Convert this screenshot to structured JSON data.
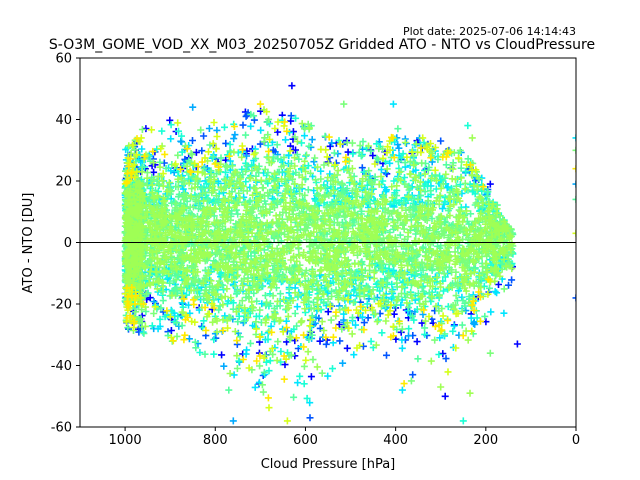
{
  "plot_date": "Plot date: 2025-07-06 14:14:43",
  "chart_data": {
    "type": "scatter",
    "title": "S-O3M_GOME_VOD_XX_M03_20250705Z Gridded ATO - NTO vs CloudPressure",
    "xlabel": "Cloud Pressure [hPa]",
    "ylabel": "ATO - NTO [DU]",
    "xlim": [
      1100,
      0
    ],
    "ylim": [
      -60,
      60
    ],
    "x_ticks": [
      1000,
      800,
      600,
      400,
      200,
      0
    ],
    "y_ticks": [
      60,
      40,
      20,
      0,
      -20,
      -40,
      -60
    ],
    "reference_line_y": 0,
    "marker": "+",
    "colors": [
      "#0000ff",
      "#0055ff",
      "#00aaff",
      "#00e5ff",
      "#1affd5",
      "#55ff9f",
      "#7bff7b",
      "#9fff55",
      "#d5ff1a",
      "#ffea00"
    ],
    "envelope": [
      {
        "x": 1000,
        "upper": 30,
        "lower": -28
      },
      {
        "x": 950,
        "upper": 40,
        "lower": -30
      },
      {
        "x": 900,
        "upper": 40,
        "lower": -32
      },
      {
        "x": 850,
        "upper": 38,
        "lower": -35
      },
      {
        "x": 800,
        "upper": 40,
        "lower": -40
      },
      {
        "x": 750,
        "upper": 42,
        "lower": -48
      },
      {
        "x": 700,
        "upper": 44,
        "lower": -55
      },
      {
        "x": 650,
        "upper": 42,
        "lower": -57
      },
      {
        "x": 600,
        "upper": 40,
        "lower": -57
      },
      {
        "x": 550,
        "upper": 35,
        "lower": -45
      },
      {
        "x": 500,
        "upper": 35,
        "lower": -38
      },
      {
        "x": 450,
        "upper": 32,
        "lower": -35
      },
      {
        "x": 400,
        "upper": 35,
        "lower": -45
      },
      {
        "x": 350,
        "upper": 35,
        "lower": -48
      },
      {
        "x": 300,
        "upper": 30,
        "lower": -50
      },
      {
        "x": 250,
        "upper": 30,
        "lower": -55
      },
      {
        "x": 200,
        "upper": 20,
        "lower": -30
      },
      {
        "x": 150,
        "upper": 5,
        "lower": -25
      }
    ],
    "outliers": [
      {
        "x": 630,
        "y": 51
      },
      {
        "x": 405,
        "y": 45
      },
      {
        "x": 515,
        "y": 45
      },
      {
        "x": 700,
        "y": 45
      },
      {
        "x": 850,
        "y": 44
      },
      {
        "x": 395,
        "y": 37
      },
      {
        "x": 340,
        "y": 34
      },
      {
        "x": 300,
        "y": 33
      },
      {
        "x": 240,
        "y": 38
      },
      {
        "x": 230,
        "y": 34
      },
      {
        "x": 190,
        "y": 19
      },
      {
        "x": 0,
        "y": 34
      },
      {
        "x": 0,
        "y": 30
      },
      {
        "x": 0,
        "y": 24
      },
      {
        "x": 0,
        "y": 19
      },
      {
        "x": 0,
        "y": 14
      },
      {
        "x": 0,
        "y": 3
      },
      {
        "x": 0,
        "y": -18
      },
      {
        "x": 250,
        "y": -58
      },
      {
        "x": 235,
        "y": -49
      },
      {
        "x": 130,
        "y": -33
      },
      {
        "x": 160,
        "y": -23
      },
      {
        "x": 190,
        "y": -36
      },
      {
        "x": 620,
        "y": -31
      },
      {
        "x": 760,
        "y": -58
      },
      {
        "x": 770,
        "y": -48
      },
      {
        "x": 640,
        "y": -58
      },
      {
        "x": 590,
        "y": -57
      },
      {
        "x": 540,
        "y": -41
      },
      {
        "x": 300,
        "y": -47
      },
      {
        "x": 290,
        "y": -50
      },
      {
        "x": 385,
        "y": -48
      },
      {
        "x": 365,
        "y": -45
      }
    ],
    "grid": false
  }
}
